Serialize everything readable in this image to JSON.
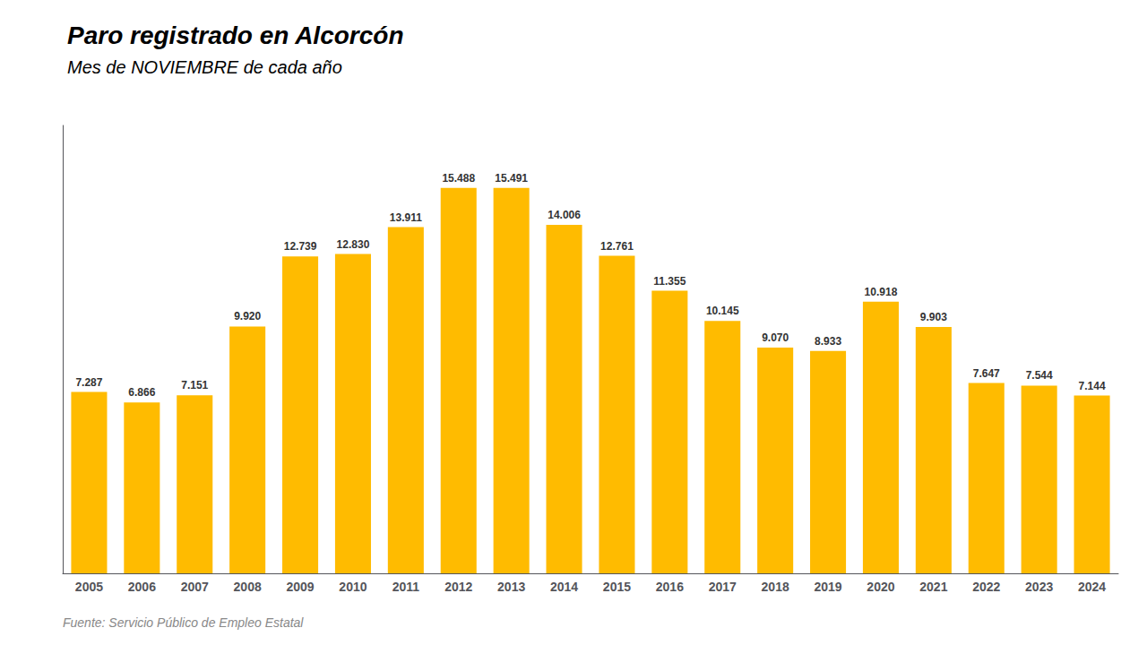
{
  "chart_data": {
    "type": "bar",
    "title": "Paro registrado en Alcorcón",
    "subtitle": "Mes de NOVIEMBRE de cada año",
    "annotations": [
      "Fuente: Servicio Público de Empleo Estatal"
    ],
    "categories": [
      "2005",
      "2006",
      "2007",
      "2008",
      "2009",
      "2010",
      "2011",
      "2012",
      "2013",
      "2014",
      "2015",
      "2016",
      "2017",
      "2018",
      "2019",
      "2020",
      "2021",
      "2022",
      "2023",
      "2024"
    ],
    "values": [
      7287,
      6866,
      7151,
      9920,
      12739,
      12830,
      13911,
      15488,
      15491,
      14006,
      12761,
      11355,
      10145,
      9070,
      8933,
      10918,
      9903,
      7647,
      7544,
      7144
    ],
    "value_labels": [
      "7.287",
      "6.866",
      "7.151",
      "9.920",
      "12.739",
      "12.830",
      "13.911",
      "15.488",
      "15.491",
      "14.006",
      "12.761",
      "11.355",
      "10.145",
      "9.070",
      "8.933",
      "10.918",
      "9.903",
      "7.647",
      "7.544",
      "7.144"
    ],
    "color": "#FFBB00",
    "ylim": [
      0,
      18000
    ],
    "data_labels": true,
    "tick_labels": "x",
    "grid": false
  }
}
